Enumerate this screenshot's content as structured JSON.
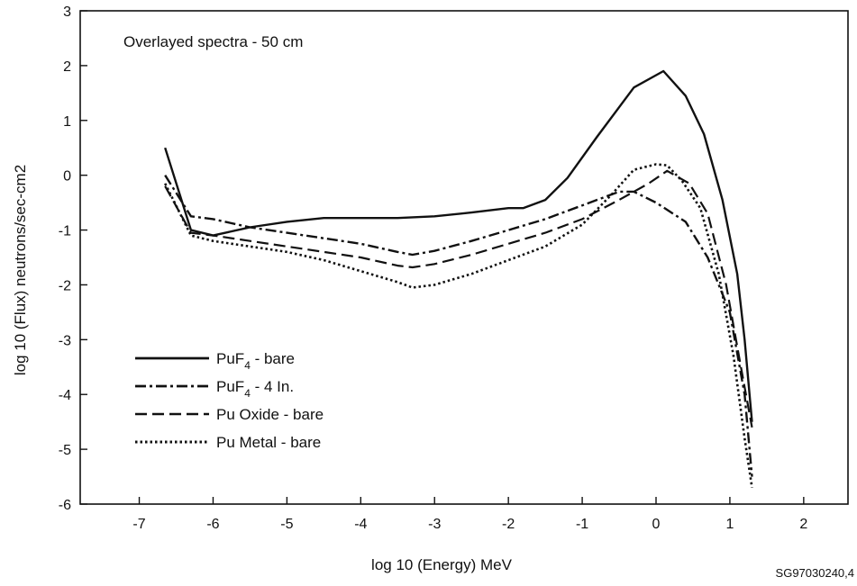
{
  "chart_data": {
    "type": "line",
    "title": "",
    "annotation": "Overlayed spectra - 50 cm",
    "xlabel": "log 10 (Energy) MeV",
    "ylabel": "log 10 (Flux) neutrons/sec-cm2",
    "xlim": [
      -7.8,
      2.6
    ],
    "ylim": [
      -6,
      3
    ],
    "xticks": [
      -7,
      -6,
      -5,
      -4,
      -3,
      -2,
      -1,
      0,
      1,
      2
    ],
    "yticks": [
      3,
      2,
      1,
      0,
      -1,
      -2,
      -3,
      -4,
      -5,
      -6
    ],
    "grid": false,
    "legend_position": "bottom-left",
    "source_id": "SG97030240,4",
    "series": [
      {
        "name": "PuF4 - bare",
        "legend_main": "PuF",
        "legend_sub": "4",
        "legend_rest": " - bare",
        "dash": "solid",
        "points": [
          [
            -6.65,
            0.5
          ],
          [
            -6.3,
            -1.0
          ],
          [
            -6.0,
            -1.1
          ],
          [
            -5.5,
            -0.95
          ],
          [
            -5.0,
            -0.85
          ],
          [
            -4.5,
            -0.78
          ],
          [
            -4.0,
            -0.78
          ],
          [
            -3.5,
            -0.78
          ],
          [
            -3.0,
            -0.75
          ],
          [
            -2.5,
            -0.68
          ],
          [
            -2.0,
            -0.6
          ],
          [
            -1.8,
            -0.6
          ],
          [
            -1.5,
            -0.45
          ],
          [
            -1.2,
            -0.05
          ],
          [
            -0.8,
            0.7
          ],
          [
            -0.3,
            1.6
          ],
          [
            0.1,
            1.9
          ],
          [
            0.4,
            1.45
          ],
          [
            0.65,
            0.75
          ],
          [
            0.9,
            -0.45
          ],
          [
            1.1,
            -1.8
          ],
          [
            1.2,
            -3.0
          ],
          [
            1.3,
            -4.5
          ]
        ]
      },
      {
        "name": "PuF4 - 4 In.",
        "legend_main": "PuF",
        "legend_sub": "4",
        "legend_rest": " - 4 In.",
        "dash": "dashdot",
        "points": [
          [
            -6.65,
            0.0
          ],
          [
            -6.3,
            -0.75
          ],
          [
            -6.0,
            -0.8
          ],
          [
            -5.5,
            -0.95
          ],
          [
            -5.0,
            -1.05
          ],
          [
            -4.5,
            -1.15
          ],
          [
            -4.0,
            -1.25
          ],
          [
            -3.5,
            -1.4
          ],
          [
            -3.3,
            -1.45
          ],
          [
            -3.0,
            -1.38
          ],
          [
            -2.5,
            -1.2
          ],
          [
            -2.0,
            -1.0
          ],
          [
            -1.5,
            -0.8
          ],
          [
            -1.0,
            -0.55
          ],
          [
            -0.5,
            -0.3
          ],
          [
            -0.3,
            -0.3
          ],
          [
            0.0,
            -0.5
          ],
          [
            0.4,
            -0.85
          ],
          [
            0.7,
            -1.5
          ],
          [
            1.0,
            -2.5
          ],
          [
            1.2,
            -4.0
          ],
          [
            1.3,
            -5.5
          ]
        ]
      },
      {
        "name": "Pu Oxide - bare",
        "legend_main": "Pu Oxide - bare",
        "legend_sub": "",
        "legend_rest": "",
        "dash": "dash",
        "points": [
          [
            -6.65,
            -0.2
          ],
          [
            -6.3,
            -1.05
          ],
          [
            -6.0,
            -1.1
          ],
          [
            -5.5,
            -1.2
          ],
          [
            -5.0,
            -1.3
          ],
          [
            -4.5,
            -1.4
          ],
          [
            -4.0,
            -1.5
          ],
          [
            -3.5,
            -1.65
          ],
          [
            -3.3,
            -1.68
          ],
          [
            -3.0,
            -1.62
          ],
          [
            -2.5,
            -1.45
          ],
          [
            -2.0,
            -1.25
          ],
          [
            -1.5,
            -1.05
          ],
          [
            -1.0,
            -0.8
          ],
          [
            -0.5,
            -0.45
          ],
          [
            -0.1,
            -0.15
          ],
          [
            0.15,
            0.08
          ],
          [
            0.45,
            -0.15
          ],
          [
            0.7,
            -0.7
          ],
          [
            0.95,
            -2.0
          ],
          [
            1.15,
            -3.5
          ],
          [
            1.3,
            -4.6
          ]
        ]
      },
      {
        "name": "Pu Metal - bare",
        "legend_main": "Pu Metal - bare",
        "legend_sub": "",
        "legend_rest": "",
        "dash": "dot",
        "points": [
          [
            -6.65,
            -0.15
          ],
          [
            -6.3,
            -1.1
          ],
          [
            -6.0,
            -1.2
          ],
          [
            -5.5,
            -1.3
          ],
          [
            -5.0,
            -1.4
          ],
          [
            -4.5,
            -1.55
          ],
          [
            -4.0,
            -1.75
          ],
          [
            -3.5,
            -1.95
          ],
          [
            -3.3,
            -2.05
          ],
          [
            -3.0,
            -2.0
          ],
          [
            -2.5,
            -1.8
          ],
          [
            -2.0,
            -1.55
          ],
          [
            -1.5,
            -1.3
          ],
          [
            -1.0,
            -0.9
          ],
          [
            -0.6,
            -0.35
          ],
          [
            -0.3,
            0.1
          ],
          [
            0.0,
            0.2
          ],
          [
            0.15,
            0.18
          ],
          [
            0.35,
            -0.1
          ],
          [
            0.6,
            -0.6
          ],
          [
            0.85,
            -1.8
          ],
          [
            1.05,
            -3.3
          ],
          [
            1.2,
            -4.8
          ],
          [
            1.3,
            -5.7
          ]
        ]
      }
    ]
  }
}
